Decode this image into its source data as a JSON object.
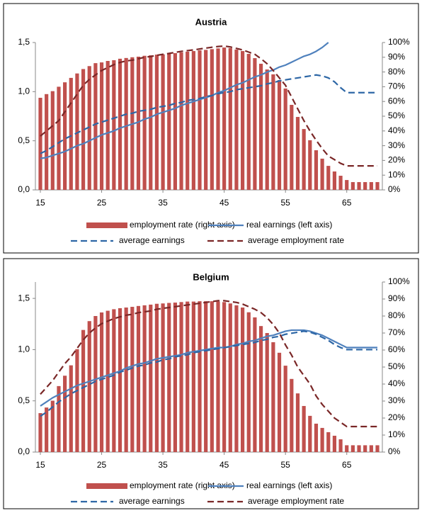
{
  "chart_data": [
    {
      "type": "combo",
      "title": "Austria",
      "x": [
        15,
        16,
        17,
        18,
        19,
        20,
        21,
        22,
        23,
        24,
        25,
        26,
        27,
        28,
        29,
        30,
        31,
        32,
        33,
        34,
        35,
        36,
        37,
        38,
        39,
        40,
        41,
        42,
        43,
        44,
        45,
        46,
        47,
        48,
        49,
        50,
        51,
        52,
        53,
        54,
        55,
        56,
        57,
        58,
        59,
        60,
        61,
        62,
        63,
        64,
        65,
        66,
        67,
        68,
        69,
        70
      ],
      "xlim": [
        15,
        70
      ],
      "xticks": [
        15,
        25,
        35,
        45,
        55,
        65
      ],
      "ylim": [
        0,
        1.5
      ],
      "yticks": [
        {
          "value": 0,
          "label": "0,0"
        },
        {
          "value": 0.5,
          "label": "0,5"
        },
        {
          "value": 1,
          "label": "1,0"
        },
        {
          "value": 1.5,
          "label": "1,5"
        }
      ],
      "y2lim": [
        0,
        100
      ],
      "y2ticks": [
        {
          "value": 0,
          "label": "0%"
        },
        {
          "value": 10,
          "label": "10%"
        },
        {
          "value": 20,
          "label": "20%"
        },
        {
          "value": 30,
          "label": "30%"
        },
        {
          "value": 40,
          "label": "40%"
        },
        {
          "value": 50,
          "label": "50%"
        },
        {
          "value": 60,
          "label": "60%"
        },
        {
          "value": 70,
          "label": "70%"
        },
        {
          "value": 80,
          "label": "80%"
        },
        {
          "value": 90,
          "label": "90%"
        },
        {
          "value": 100,
          "label": "100%"
        }
      ],
      "series": [
        {
          "name": "employment rate (right axis)",
          "type": "bar",
          "axis": "y2",
          "color": "#c0504d",
          "values": [
            62.5,
            65,
            67,
            70,
            73,
            76,
            79,
            82,
            84,
            86,
            86.5,
            87.5,
            88,
            89,
            89.5,
            90,
            90.4,
            91,
            91.3,
            91.8,
            92,
            92.3,
            92.8,
            93.3,
            93.8,
            94.2,
            94.7,
            95,
            95.5,
            96,
            96.6,
            96.2,
            95.2,
            94.2,
            92.3,
            89.4,
            85.6,
            81.7,
            78.4,
            74.5,
            68.8,
            57.7,
            49.5,
            41.3,
            33.7,
            26.9,
            21.2,
            16.3,
            12.5,
            9.6,
            6.7,
            5.3,
            5.3,
            5.3,
            5.3,
            5.3
          ]
        },
        {
          "name": "real earnings (left axis)",
          "type": "line",
          "dashed": false,
          "color": "#4f81bd",
          "values": [
            0.32,
            0.33,
            0.35,
            0.37,
            0.39,
            0.42,
            0.45,
            0.47,
            0.5,
            0.53,
            0.56,
            0.58,
            0.6,
            0.63,
            0.65,
            0.67,
            0.69,
            0.72,
            0.74,
            0.77,
            0.79,
            0.81,
            0.83,
            0.86,
            0.88,
            0.9,
            0.92,
            0.94,
            0.96,
            0.99,
            1.01,
            1.04,
            1.07,
            1.09,
            1.12,
            1.15,
            1.17,
            1.2,
            1.22,
            1.25,
            1.27,
            1.3,
            1.33,
            1.36,
            1.38,
            1.41,
            1.45,
            1.5,
            null,
            null,
            null,
            null,
            null,
            null,
            null,
            null
          ]
        },
        {
          "name": "average earnings",
          "type": "line",
          "dashed": true,
          "color": "#2e67a6",
          "values": [
            0.37,
            0.4,
            0.44,
            0.48,
            0.52,
            0.55,
            0.58,
            0.61,
            0.64,
            0.67,
            0.69,
            0.71,
            0.73,
            0.75,
            0.77,
            0.78,
            0.8,
            0.81,
            0.82,
            0.84,
            0.85,
            0.86,
            0.88,
            0.89,
            0.91,
            0.92,
            0.93,
            0.95,
            0.96,
            0.98,
            0.99,
            1,
            1.02,
            1.03,
            1.04,
            1.05,
            1.06,
            1.08,
            1.09,
            1.11,
            1.12,
            1.13,
            1.14,
            1.15,
            1.16,
            1.17,
            1.16,
            1.14,
            1.1,
            1.04,
            0.99,
            0.99,
            0.99,
            0.99,
            0.99,
            0.99
          ]
        },
        {
          "name": "average employment rate",
          "type": "line",
          "dashed": true,
          "axis": "y2",
          "color": "#7a2727",
          "values": [
            36.5,
            40,
            43.5,
            47,
            53,
            59,
            65,
            71,
            75,
            78,
            81,
            83,
            85,
            86.5,
            87.5,
            88,
            89,
            90,
            90.5,
            91.3,
            92,
            92.6,
            93.3,
            94,
            94.5,
            95,
            95.6,
            96.2,
            96.8,
            97.3,
            97.6,
            97,
            96,
            95,
            93.5,
            92,
            89,
            85.6,
            81,
            76,
            71,
            63,
            55,
            47,
            40,
            33.7,
            28,
            23,
            20.5,
            18,
            16.3,
            16.3,
            16.3,
            16.3,
            16.3,
            16.3
          ]
        }
      ]
    },
    {
      "type": "combo",
      "title": "Belgium",
      "x": [
        15,
        16,
        17,
        18,
        19,
        20,
        21,
        22,
        23,
        24,
        25,
        26,
        27,
        28,
        29,
        30,
        31,
        32,
        33,
        34,
        35,
        36,
        37,
        38,
        39,
        40,
        41,
        42,
        43,
        44,
        45,
        46,
        47,
        48,
        49,
        50,
        51,
        52,
        53,
        54,
        55,
        56,
        57,
        58,
        59,
        60,
        61,
        62,
        63,
        64,
        65,
        66,
        67,
        68,
        69,
        70
      ],
      "xlim": [
        15,
        70
      ],
      "xticks": [
        15,
        25,
        35,
        45,
        55,
        65
      ],
      "ylim": [
        0,
        1.66
      ],
      "yticks": [
        {
          "value": 0,
          "label": "0,0"
        },
        {
          "value": 0.5,
          "label": "0,5"
        },
        {
          "value": 1,
          "label": "1,0"
        },
        {
          "value": 1.5,
          "label": "1,5"
        }
      ],
      "y2lim": [
        0,
        100
      ],
      "y2ticks": [
        {
          "value": 0,
          "label": "0%"
        },
        {
          "value": 10,
          "label": "10%"
        },
        {
          "value": 20,
          "label": "20%"
        },
        {
          "value": 30,
          "label": "30%"
        },
        {
          "value": 40,
          "label": "40%"
        },
        {
          "value": 50,
          "label": "50%"
        },
        {
          "value": 60,
          "label": "60%"
        },
        {
          "value": 70,
          "label": "70%"
        },
        {
          "value": 80,
          "label": "80%"
        },
        {
          "value": 90,
          "label": "90%"
        },
        {
          "value": 100,
          "label": "100%"
        }
      ],
      "series": [
        {
          "name": "employment rate (right axis)",
          "type": "bar",
          "axis": "y2",
          "color": "#c0504d",
          "values": [
            22.9,
            26.2,
            30.2,
            38.8,
            44.9,
            51,
            60.5,
            71.8,
            77,
            80,
            82.1,
            83.1,
            84,
            84.6,
            85,
            85.4,
            85.9,
            86.3,
            86.7,
            87.2,
            87.4,
            87.7,
            87.9,
            88.2,
            88.5,
            88.5,
            88.7,
            88.7,
            88.7,
            88.5,
            88.2,
            87.4,
            86.3,
            85,
            82.2,
            79.2,
            74.1,
            70,
            64.6,
            58.4,
            50.8,
            43,
            34.5,
            27.1,
            21.3,
            16.7,
            14.2,
            11.7,
            9.6,
            7.5,
            4,
            4,
            4,
            4,
            4,
            4
          ]
        },
        {
          "name": "real earnings (left axis)",
          "type": "line",
          "dashed": false,
          "color": "#4f81bd",
          "values": [
            0.45,
            0.49,
            0.53,
            0.56,
            0.59,
            0.62,
            0.65,
            0.67,
            0.69,
            0.71,
            0.73,
            0.75,
            0.77,
            0.79,
            0.82,
            0.84,
            0.86,
            0.87,
            0.89,
            0.91,
            0.92,
            0.93,
            0.94,
            0.95,
            0.97,
            0.98,
            0.99,
            1,
            1.01,
            1.02,
            1.02,
            1.03,
            1.05,
            1.06,
            1.08,
            1.09,
            1.11,
            1.13,
            1.14,
            1.16,
            1.18,
            1.19,
            1.19,
            1.19,
            1.18,
            1.16,
            1.14,
            1.11,
            1.08,
            1.05,
            1.02,
            1.02,
            1.02,
            1.02,
            1.02,
            1.02
          ]
        },
        {
          "name": "average earnings",
          "type": "line",
          "dashed": true,
          "color": "#2e67a6",
          "values": [
            0.35,
            0.39,
            0.44,
            0.49,
            0.53,
            0.57,
            0.6,
            0.63,
            0.66,
            0.69,
            0.71,
            0.73,
            0.75,
            0.78,
            0.8,
            0.82,
            0.84,
            0.85,
            0.87,
            0.88,
            0.9,
            0.91,
            0.93,
            0.94,
            0.95,
            0.97,
            0.98,
            0.99,
            1,
            1.01,
            1.02,
            1.03,
            1.04,
            1.05,
            1.06,
            1.07,
            1.09,
            1.1,
            1.12,
            1.13,
            1.15,
            1.16,
            1.17,
            1.18,
            1.17,
            1.15,
            1.12,
            1.09,
            1.05,
            1.02,
            1,
            1,
            1,
            1,
            1,
            1
          ]
        },
        {
          "name": "average employment rate",
          "type": "line",
          "dashed": true,
          "axis": "y2",
          "color": "#7a2727",
          "values": [
            34,
            38,
            42,
            47,
            52,
            56,
            61,
            66,
            70,
            73,
            75.5,
            77,
            78.5,
            79.5,
            80.5,
            81,
            82,
            82.5,
            83,
            84,
            84.5,
            85,
            85.5,
            86,
            86.5,
            87,
            87.5,
            88,
            88.5,
            89,
            89,
            88.5,
            88,
            87,
            85.5,
            84,
            82,
            79,
            75,
            70,
            63,
            57,
            50,
            45,
            40,
            33,
            28,
            24,
            20,
            17.5,
            15,
            15,
            15,
            15,
            15,
            15
          ]
        }
      ]
    }
  ]
}
